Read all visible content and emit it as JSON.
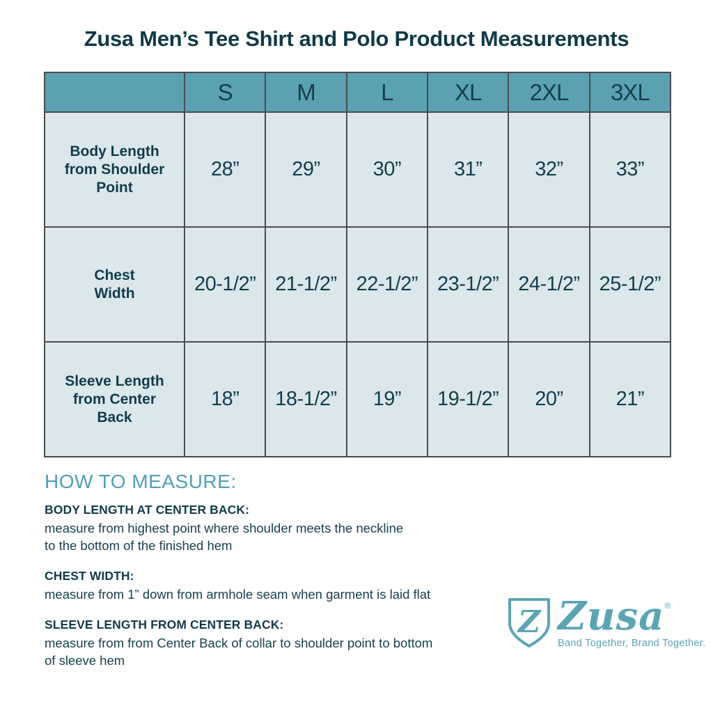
{
  "title": "Zusa Men’s Tee Shirt and Polo Product Measurements",
  "colors": {
    "dark_teal_text": "#113c4a",
    "accent_teal": "#4f9fb8",
    "logo_teal": "#5aa5b5",
    "table_header_bg": "#5aa2b1",
    "table_cell_bg": "#dce7eb",
    "table_border": "#4a4c4e",
    "background": "#ffffff"
  },
  "chart_data": {
    "type": "table",
    "columns": [
      "",
      "S",
      "M",
      "L",
      "XL",
      "2XL",
      "3XL"
    ],
    "rows": [
      {
        "label": "Body Length\nfrom Shoulder\nPoint",
        "values": [
          "28”",
          "29”",
          "30”",
          "31”",
          "32”",
          "33”"
        ]
      },
      {
        "label": "Chest\nWidth",
        "values": [
          "20-1/2”",
          "21-1/2”",
          "22-1/2”",
          "23-1/2”",
          "24-1/2”",
          "25-1/2”"
        ]
      },
      {
        "label": "Sleeve Length\nfrom Center\nBack",
        "values": [
          "18”",
          "18-1/2”",
          "19”",
          "19-1/2”",
          "20”",
          "21”"
        ]
      }
    ]
  },
  "how_to_measure": {
    "heading": "HOW TO MEASURE:",
    "items": [
      {
        "label": "BODY LENGTH AT CENTER BACK:",
        "text": "measure from highest point where shoulder meets the neckline\nto the bottom of the finished hem"
      },
      {
        "label": "CHEST WIDTH:",
        "text": "measure from 1” down from armhole seam when garment is laid flat"
      },
      {
        "label": "SLEEVE LENGTH FROM CENTER BACK:",
        "text": "measure from from Center Back of collar to shoulder point to bottom\nof sleeve hem"
      }
    ]
  },
  "logo": {
    "shield_letter": "Z",
    "wordmark": "Zusa",
    "registered": "®",
    "tagline": "Band Together, Brand Together."
  }
}
